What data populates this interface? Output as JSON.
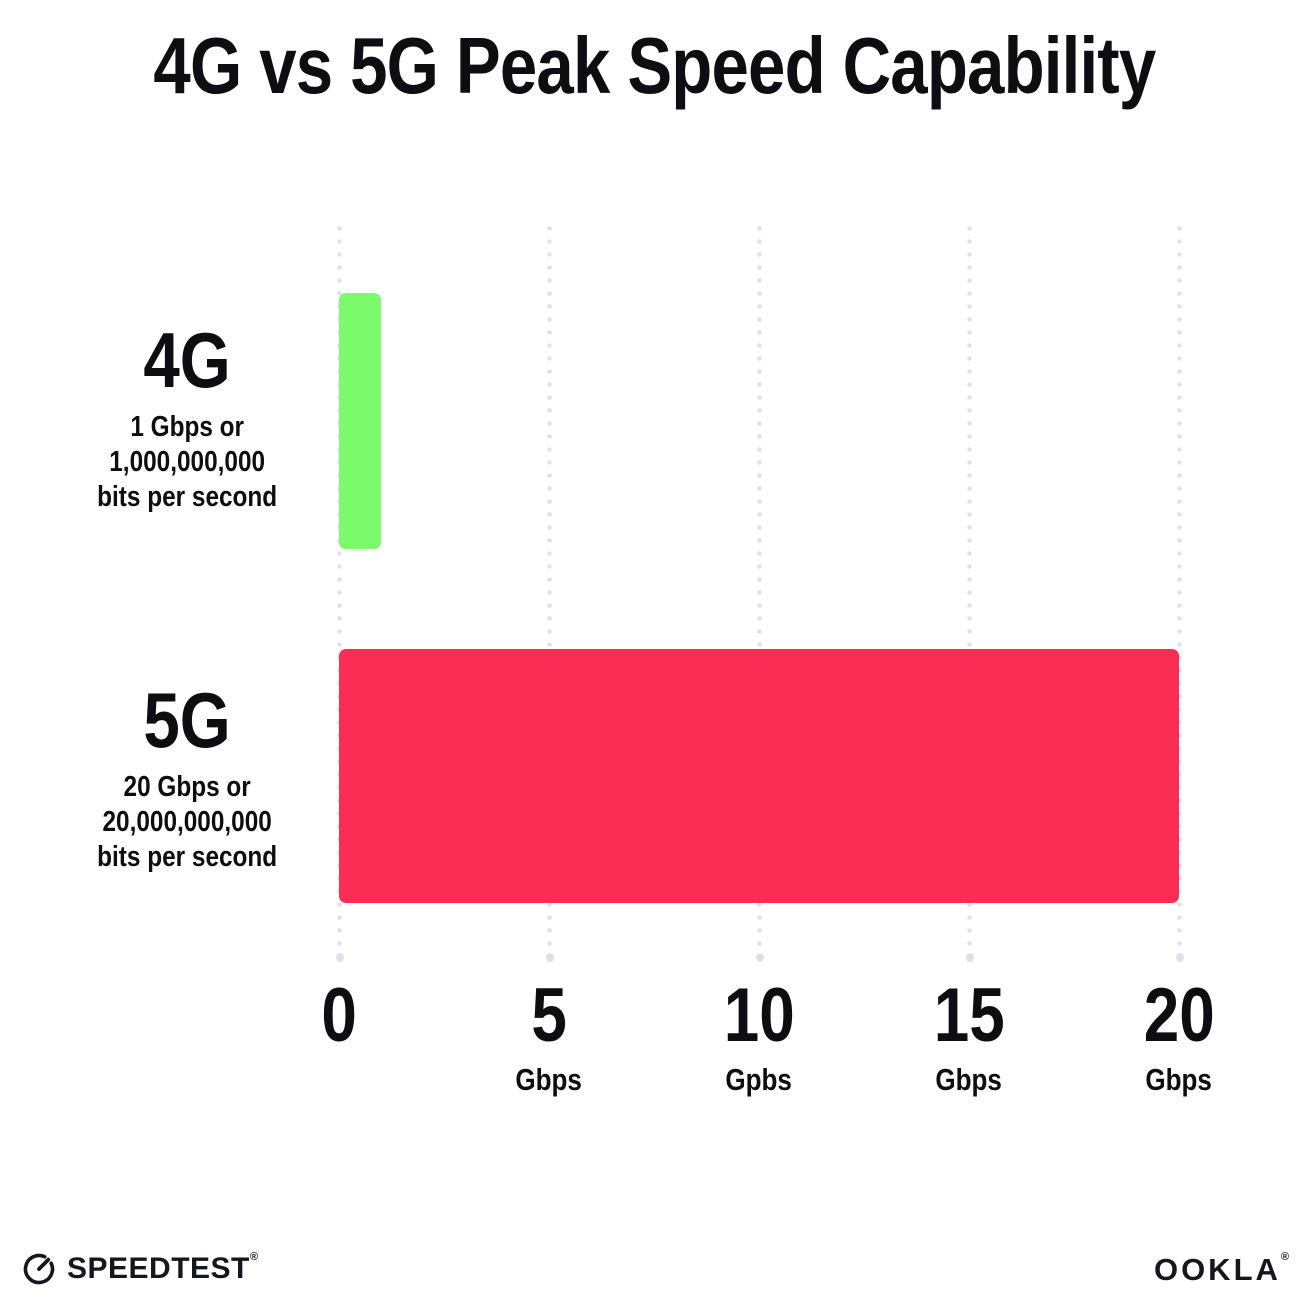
{
  "title": "4G vs 5G Peak Speed Capability",
  "chart_data": {
    "type": "bar",
    "orientation": "horizontal",
    "title": "4G vs 5G Peak Speed Capability",
    "xlim": [
      0,
      20
    ],
    "x_unit": "Gbps",
    "grid": "vertical dotted gridlines at 0, 5, 10, 15, 20 Gbps",
    "legend": "none",
    "categories": [
      {
        "name": "4G",
        "value_gbps": 1,
        "color": "#7cfa6b",
        "sub_lines": [
          "1 Gbps or",
          "1,000,000,000",
          "bits per second"
        ]
      },
      {
        "name": "5G",
        "value_gbps": 20,
        "color": "#fc2d55",
        "sub_lines": [
          "20 Gbps or",
          "20,000,000,000",
          "bits per second"
        ]
      }
    ],
    "x_ticks": [
      {
        "label": "0",
        "unit": ""
      },
      {
        "label": "5",
        "unit": "Gbps"
      },
      {
        "label": "10",
        "unit": "Gpbs"
      },
      {
        "label": "15",
        "unit": "Gbps"
      },
      {
        "label": "20",
        "unit": "Gbps"
      }
    ]
  },
  "footer": {
    "speedtest": "SPEEDTEST",
    "speedtest_mark": "®",
    "ookla": "OOKLA",
    "ookla_mark": "®"
  },
  "colors": {
    "background": "#ffffff",
    "text": "#0d0d12",
    "gridline": "#dde0ee",
    "bar_4g": "#7cfa6b",
    "bar_5g": "#fc2d55"
  }
}
